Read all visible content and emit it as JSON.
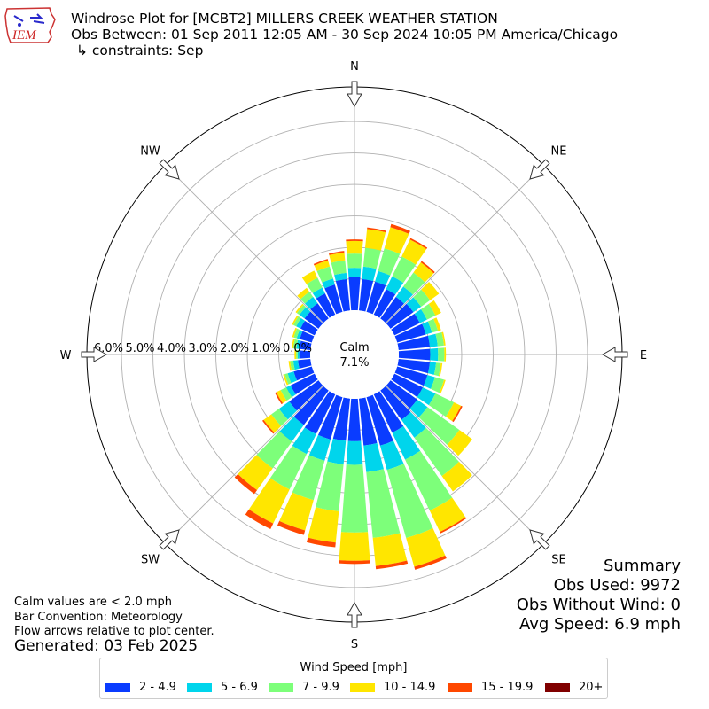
{
  "header": {
    "title": "Windrose Plot for [MCBT2] MILLERS CREEK WEATHER STATION",
    "obs_between": "Obs Between: 01 Sep 2011 12:05 AM - 30 Sep 2024 10:05 PM America/Chicago",
    "constraints": "↳ constraints: Sep"
  },
  "logo": {
    "text": "IEM",
    "icon": "iowa-state-outline-logo"
  },
  "footer": {
    "calm_note": "Calm values are < 2.0 mph",
    "bar_convention": "Bar Convention: Meteorology",
    "flow_note": "Flow arrows relative to plot center.",
    "generated": "Generated: 03 Feb 2025"
  },
  "summary": {
    "heading": "Summary",
    "obs_used": "Obs Used: 9972",
    "obs_without_wind": "Obs Without Wind: 0",
    "avg_speed": "Avg Speed: 6.9 mph"
  },
  "chart_data": {
    "type": "windrose",
    "calm_label": "Calm",
    "calm_value": "7.1%",
    "radial_tick_labels": [
      "0.0%",
      "1.0%",
      "2.0%",
      "3.0%",
      "4.0%",
      "5.0%",
      "6.0%"
    ],
    "radial_ticks": [
      0,
      1,
      2,
      3,
      4,
      5,
      6
    ],
    "rmax": 7.1,
    "direction_labels": [
      "N",
      "NE",
      "E",
      "SE",
      "S",
      "SW",
      "W",
      "NW"
    ],
    "legend_title": "Wind Speed [mph]",
    "bins": [
      {
        "label": "2 - 4.9",
        "color": "#0a3cff"
      },
      {
        "label": "5 - 6.9",
        "color": "#00d5ec"
      },
      {
        "label": "7 - 9.9",
        "color": "#7dff7a"
      },
      {
        "label": "10 - 14.9",
        "color": "#ffe600"
      },
      {
        "label": "15 - 19.9",
        "color": "#ff4800"
      },
      {
        "label": "20+",
        "color": "#800000"
      }
    ],
    "directions_deg": [
      0,
      10,
      20,
      30,
      40,
      50,
      60,
      70,
      80,
      90,
      100,
      110,
      120,
      130,
      140,
      150,
      160,
      170,
      180,
      190,
      200,
      210,
      220,
      230,
      240,
      250,
      260,
      270,
      280,
      290,
      300,
      310,
      320,
      330,
      340,
      350
    ],
    "cumulative_percent": [
      [
        1.05,
        1.35,
        1.8,
        2.2,
        2.25,
        2.25
      ],
      [
        1.0,
        1.4,
        2.0,
        2.6,
        2.65,
        2.65
      ],
      [
        1.0,
        1.35,
        2.1,
        2.8,
        2.9,
        2.9
      ],
      [
        0.9,
        1.35,
        2.05,
        2.65,
        2.7,
        2.7
      ],
      [
        0.85,
        1.25,
        1.8,
        2.2,
        2.25,
        2.25
      ],
      [
        0.9,
        1.2,
        1.55,
        1.9,
        1.9,
        1.9
      ],
      [
        0.9,
        1.15,
        1.45,
        1.65,
        1.65,
        1.65
      ],
      [
        0.95,
        1.15,
        1.35,
        1.45,
        1.45,
        1.45
      ],
      [
        1.0,
        1.25,
        1.45,
        1.5,
        1.5,
        1.5
      ],
      [
        1.0,
        1.25,
        1.45,
        1.5,
        1.5,
        1.5
      ],
      [
        1.0,
        1.2,
        1.35,
        1.4,
        1.4,
        1.4
      ],
      [
        1.0,
        1.25,
        1.55,
        1.6,
        1.6,
        1.6
      ],
      [
        1.0,
        1.45,
        2.1,
        2.35,
        2.4,
        2.4
      ],
      [
        1.05,
        1.45,
        2.7,
        3.2,
        3.2,
        3.2
      ],
      [
        1.15,
        1.85,
        3.35,
        3.95,
        3.95,
        3.95
      ],
      [
        1.35,
        2.3,
        4.1,
        4.85,
        4.9,
        4.9
      ],
      [
        1.6,
        2.4,
        4.65,
        5.6,
        5.7,
        5.7
      ],
      [
        1.5,
        2.35,
        4.45,
        5.35,
        5.45,
        5.45
      ],
      [
        1.35,
        2.1,
        4.25,
        5.15,
        5.25,
        5.25
      ],
      [
        1.35,
        2.1,
        3.6,
        4.6,
        4.75,
        4.75
      ],
      [
        1.4,
        2.1,
        3.4,
        4.4,
        4.55,
        4.55
      ],
      [
        1.4,
        2.1,
        3.35,
        4.55,
        4.75,
        4.75
      ],
      [
        1.35,
        2.0,
        3.05,
        3.9,
        4.05,
        4.05
      ],
      [
        1.15,
        1.55,
        1.85,
        2.15,
        2.2,
        2.2
      ],
      [
        0.85,
        1.0,
        1.2,
        1.35,
        1.4,
        1.4
      ],
      [
        0.6,
        0.8,
        0.9,
        0.95,
        0.95,
        0.95
      ],
      [
        0.4,
        0.55,
        0.65,
        0.7,
        0.7,
        0.7
      ],
      [
        0.35,
        0.4,
        0.45,
        0.5,
        0.5,
        0.5
      ],
      [
        0.35,
        0.45,
        0.55,
        0.6,
        0.6,
        0.6
      ],
      [
        0.4,
        0.5,
        0.6,
        0.65,
        0.65,
        0.65
      ],
      [
        0.5,
        0.65,
        0.75,
        0.8,
        0.8,
        0.8
      ],
      [
        0.55,
        0.75,
        0.85,
        0.9,
        0.9,
        0.9
      ],
      [
        0.6,
        0.85,
        1.05,
        1.2,
        1.2,
        1.2
      ],
      [
        0.75,
        0.95,
        1.3,
        1.55,
        1.55,
        1.55
      ],
      [
        0.9,
        1.1,
        1.5,
        1.7,
        1.75,
        1.75
      ],
      [
        1.0,
        1.2,
        1.6,
        1.85,
        1.9,
        1.9
      ]
    ]
  }
}
